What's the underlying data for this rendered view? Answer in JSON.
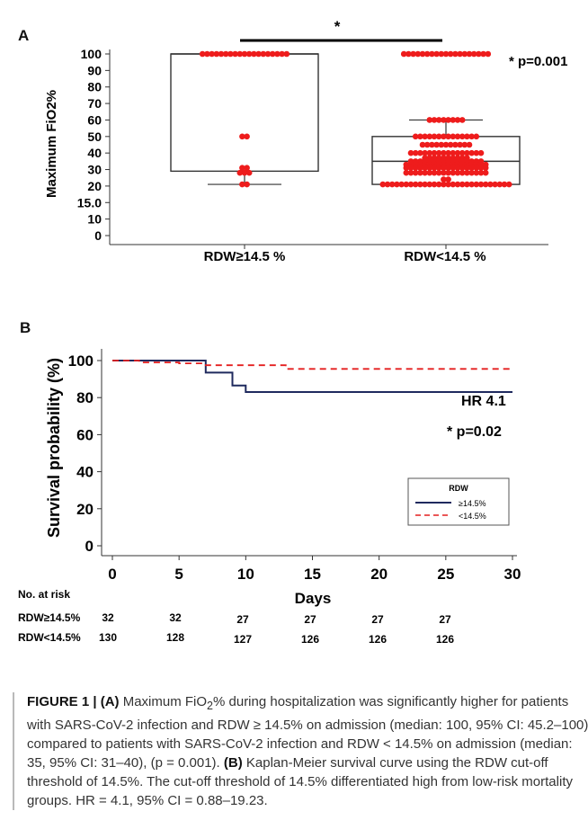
{
  "panelA": {
    "letter": "A",
    "significance": "*",
    "pvalue": "* p=0.001"
  },
  "panelB": {
    "letter": "B",
    "hr": "HR 4.1",
    "pvalue": "* p=0.02",
    "legend_title": "RDW",
    "legend_items": [
      "≥14.5%",
      "<14.5%"
    ],
    "risk_header": "No. at risk",
    "risk_rows": [
      {
        "label": "RDW≥14.5%",
        "values": [
          "32",
          "32",
          "27",
          "27",
          "27",
          "27"
        ]
      },
      {
        "label": "RDW<14.5%",
        "values": [
          "130",
          "128",
          "127",
          "126",
          "126",
          "126"
        ]
      }
    ]
  },
  "colors": {
    "high": "#1f2a5e",
    "low": "#e41f1f",
    "dots": "#ee1c1c"
  },
  "chart_data": [
    {
      "type": "scatter",
      "title": "",
      "ylabel": "Maximum FiO2%",
      "xlabel": "",
      "categories": [
        "RDW≥14.5 %",
        "RDW<14.5 %"
      ],
      "yticks": [
        "0",
        "10",
        "15.0",
        "20",
        "30",
        "40",
        "50",
        "60",
        "70",
        "80",
        "90",
        "100"
      ],
      "box": [
        {
          "group": "RDW≥14.5 %",
          "min": 21,
          "q1": 29,
          "median": 100,
          "q3": 100,
          "max": 100
        },
        {
          "group": "RDW<14.5 %",
          "min": 21,
          "q1": 21,
          "median": 35,
          "q3": 50,
          "max": 60
        }
      ],
      "points_summary": [
        {
          "group": "RDW≥14.5 %",
          "values": [
            [
              100,
              19
            ],
            [
              50,
              2
            ],
            [
              31,
              2
            ],
            [
              28,
              3
            ],
            [
              21,
              2
            ]
          ]
        },
        {
          "group": "RDW<14.5 %",
          "values": [
            [
              100,
              19
            ],
            [
              60,
              8
            ],
            [
              50,
              14
            ],
            [
              45,
              11
            ],
            [
              40,
              16
            ],
            [
              37,
              10
            ],
            [
              35,
              16
            ],
            [
              33,
              18
            ],
            [
              31,
              18
            ],
            [
              28,
              18
            ],
            [
              24,
              2
            ],
            [
              21,
              28
            ]
          ]
        }
      ]
    },
    {
      "type": "line",
      "title": "",
      "xlabel": "Days",
      "ylabel": "Survival probability (%)",
      "xlim": [
        0,
        30
      ],
      "ylim": [
        0,
        100
      ],
      "xticks": [
        0,
        5,
        10,
        15,
        20,
        25,
        30
      ],
      "yticks": [
        0,
        20,
        40,
        60,
        80,
        100
      ],
      "series": [
        {
          "name": "≥14.5%",
          "x": [
            0,
            7,
            7,
            9,
            9,
            10,
            10,
            30
          ],
          "y": [
            100,
            100,
            93.5,
            93.5,
            86.5,
            86.5,
            83,
            83
          ]
        },
        {
          "name": "<14.5%",
          "x": [
            0,
            2,
            2,
            5,
            5,
            7,
            7,
            13,
            13,
            30
          ],
          "y": [
            100,
            100,
            99,
            99,
            98.5,
            98.5,
            97.5,
            97.5,
            95.5,
            95.5
          ]
        }
      ]
    }
  ],
  "caption": {
    "label": "FIGURE 1 | ",
    "a_tag": "(A)",
    "a_text_1": " Maximum FiO",
    "a_sub": "2",
    "a_text_2": "% during hospitalization was significantly higher for patients with SARS-CoV-2 infection and RDW ≥ 14.5% on admission (median: 100, 95% CI: 45.2–100) compared to patients with SARS-CoV-2 infection and RDW < 14.5% on admission (median: 35, 95% CI: 31–40), (p = 0.001). ",
    "b_tag": "(B)",
    "b_text": " Kaplan-Meier survival curve using the RDW cut-off threshold of 14.5%. The cut-off threshold of 14.5% differentiated high from low-risk mortality groups. HR = 4.1, 95% CI = 0.88–19.23."
  }
}
